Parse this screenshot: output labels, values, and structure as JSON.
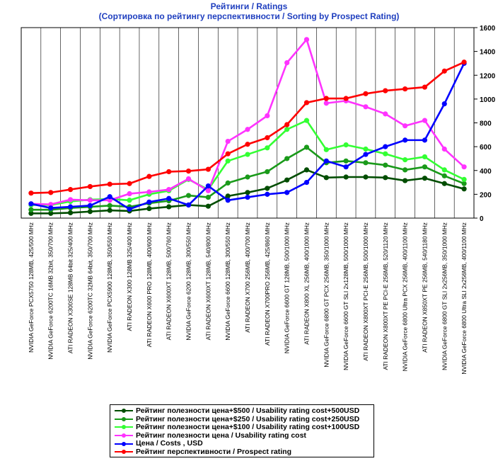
{
  "title_line1": "Рейтинги / Ratings",
  "title_line2": "(Сортировка по рейтингу перспективности / Sorting by Prospect Rating)",
  "chart_data": {
    "type": "line",
    "title": "Рейтинги / Ratings",
    "subtitle": "(Сортировка по рейтингу перспективности / Sorting by Prospect Rating)",
    "ylim": [
      0,
      1600
    ],
    "yticks": [
      0,
      200,
      400,
      600,
      800,
      1000,
      1200,
      1400,
      1600
    ],
    "grid": "vertical",
    "legend_position": "bottom",
    "categories": [
      "NVIDIA GeForce PCX5750 128MB, 425/500 MHz",
      "NVIDIA GeForce 6200TC 16MB 32bit, 350/700 MHz",
      "ATI RADEON X300SE 128MB 64bit 325/400 MHz",
      "NVIDIA GeForce 6200TC 32MB 64bit, 350/700 MHz",
      "NVIDIA GeForce PCX5900 128MB, 350/550 MHz",
      "ATI RADEON X300 128MB  325/400 MHz",
      "ATI RADEON X600 PRO 128MB, 400/600 MHz",
      "ATI RADEON X600XT 128MB, 500/760 MHz",
      "NVIDIA GeForce 6200 128MB, 300/550 MHz",
      "ATI RADEON X600XT 128MB, 540/800 MHz",
      "NVIDIA GeForce 6600 128MB, 300/550 MHz",
      "ATI RADEON X700 256MB, 400/700 MHz",
      "ATI RADEON X700PRO 256MB, 425/860 MHz",
      "NVIDIA GeForce 6600 GT 128MB, 500/1000 MHz",
      "ATI RADEON X800 XL 256MB, 400/1000 MHz",
      "NVIDIA GeForce 6800 GT PCX 256MB, 350/1000 MHz",
      "NVIDIA GeForce 6600 GT SLI 2x128MB, 500/1000 MHz",
      "ATI RADEON X800XT PCI-E 256MB, 500/1000 MHz",
      "ATI RADEON X800XT PE PCI-E 256MB, 520/1120 MHz",
      "NVIDIA GeForce 6800 Ultra PCX 256MB, 400/1100 MHz",
      "ATI RADEON X850XT PE 256MB, 540/1180 MHz",
      "NVIDIA GeForce 6800 GT SLI 2x256MB, 350/1000 MHz",
      "NVIDIA GeForce 6800 Ultra SLI 2x256MB, 400/1100 MHz"
    ],
    "series": [
      {
        "name": "Рейтинг полезности цена+$500 / Usability rating cost+500USD",
        "color": "#004d00",
        "values": [
          40,
          40,
          45,
          55,
          65,
          60,
          80,
          95,
          110,
          100,
          185,
          215,
          250,
          320,
          405,
          340,
          345,
          345,
          340,
          315,
          335,
          290,
          245
        ]
      },
      {
        "name": "Рейтинг полезности цена+$250 / Usability rating cost+250USD",
        "color": "#1a9a1a",
        "values": [
          70,
          70,
          85,
          95,
          105,
          95,
          125,
          145,
          190,
          175,
          295,
          345,
          390,
          500,
          595,
          465,
          480,
          465,
          445,
          405,
          430,
          355,
          290
        ]
      },
      {
        "name": "Рейтинг полезности цена+$100 / Usability rating cost+100USD",
        "color": "#33ff33",
        "values": [
          110,
          110,
          140,
          155,
          160,
          150,
          200,
          230,
          325,
          240,
          480,
          535,
          590,
          745,
          820,
          575,
          615,
          580,
          540,
          490,
          515,
          405,
          325
        ]
      },
      {
        "name": "Рейтинг полезности цена / Usability rating cost",
        "color": "#ff33ff",
        "values": [
          120,
          115,
          155,
          150,
          150,
          205,
          220,
          240,
          330,
          230,
          645,
          745,
          860,
          1305,
          1500,
          965,
          985,
          935,
          875,
          775,
          820,
          580,
          430
        ]
      },
      {
        "name": "Цена / Costs , USD",
        "color": "#0000ff",
        "values": [
          120,
          85,
          95,
          105,
          180,
          75,
          135,
          165,
          110,
          270,
          150,
          175,
          200,
          215,
          300,
          480,
          430,
          535,
          600,
          655,
          655,
          960,
          1300
        ]
      },
      {
        "name": "Рейтинг перспективности / Prospect rating",
        "color": "#ff0000",
        "values": [
          210,
          215,
          240,
          265,
          285,
          290,
          350,
          390,
          395,
          410,
          540,
          620,
          675,
          785,
          970,
          1005,
          1005,
          1045,
          1070,
          1085,
          1100,
          1235,
          1310
        ]
      }
    ]
  }
}
